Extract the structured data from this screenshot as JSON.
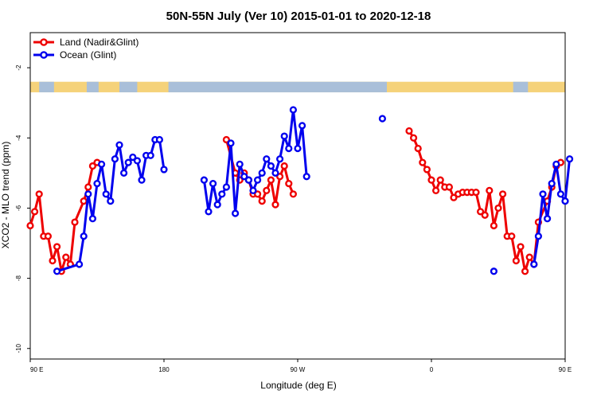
{
  "chart_data": {
    "type": "line",
    "title": "50N-55N July (Ver 10)   2015-01-01 to 2020-12-18",
    "xlabel": "Longitude (deg E)",
    "ylabel": "XCO2 - MLO trend (ppm)",
    "xlim": [
      90,
      450
    ],
    "ylim": [
      -10.3,
      -1.0
    ],
    "x_ticks": [
      {
        "value": 90,
        "label": "90 E"
      },
      {
        "value": 180,
        "label": "180"
      },
      {
        "value": 270,
        "label": "90 W"
      },
      {
        "value": 360,
        "label": "0"
      },
      {
        "value": 450,
        "label": "90 E"
      },
      {
        "value": 540,
        "label": "180"
      }
    ],
    "y_ticks": [
      {
        "value": -2,
        "label": "-2"
      },
      {
        "value": -4,
        "label": "-4"
      },
      {
        "value": -6,
        "label": "-6"
      },
      {
        "value": -8,
        "label": "-8"
      },
      {
        "value": -10,
        "label": "-10"
      }
    ],
    "grid": false,
    "legend_position": "top-left",
    "land_ocean_strip": {
      "y_range": [
        -2.7,
        -2.4
      ],
      "colors": {
        "ocean": "#a9bfd9",
        "land": "#f5d27a"
      }
    },
    "series": [
      {
        "name": "Land (Nadir&Glint)",
        "color": "#ee0000",
        "points": [
          [
            90,
            -6.5
          ],
          [
            93,
            -6.1
          ],
          [
            96,
            -5.6
          ],
          [
            99,
            -6.8
          ],
          [
            102,
            -6.8
          ],
          [
            105,
            -7.5
          ],
          [
            108,
            -7.1
          ],
          [
            111,
            -7.8
          ],
          [
            114,
            -7.4
          ],
          [
            117,
            -7.6
          ],
          [
            120,
            -6.4
          ],
          [
            126,
            -5.8
          ],
          [
            129,
            -5.4
          ],
          [
            132,
            -4.8
          ],
          [
            135,
            -4.7
          ],
          [
            222,
            -4.05
          ],
          [
            228,
            -5.0
          ],
          [
            231,
            -5.2
          ],
          [
            234,
            -5.0
          ],
          [
            237,
            -5.2
          ],
          [
            240,
            -5.6
          ],
          [
            243,
            -5.6
          ],
          [
            246,
            -5.8
          ],
          [
            249,
            -5.5
          ],
          [
            252,
            -5.2
          ],
          [
            255,
            -5.9
          ],
          [
            258,
            -5.1
          ],
          [
            261,
            -4.8
          ],
          [
            264,
            -5.3
          ],
          [
            267,
            -5.6
          ],
          [
            345,
            -3.8
          ],
          [
            348,
            -4.0
          ],
          [
            351,
            -4.3
          ],
          [
            354,
            -4.7
          ],
          [
            357,
            -4.9
          ],
          [
            360,
            -5.2
          ],
          [
            363,
            -5.5
          ],
          [
            366,
            -5.2
          ],
          [
            369,
            -5.4
          ],
          [
            372,
            -5.4
          ],
          [
            375,
            -5.7
          ],
          [
            378,
            -5.6
          ],
          [
            381,
            -5.55
          ],
          [
            384,
            -5.55
          ],
          [
            387,
            -5.55
          ],
          [
            390,
            -5.55
          ],
          [
            393,
            -6.1
          ],
          [
            396,
            -6.2
          ],
          [
            399,
            -5.5
          ],
          [
            402,
            -6.5
          ],
          [
            405,
            -6.0
          ],
          [
            408,
            -5.6
          ],
          [
            411,
            -6.8
          ],
          [
            414,
            -6.8
          ],
          [
            417,
            -7.5
          ],
          [
            420,
            -7.1
          ],
          [
            423,
            -7.8
          ],
          [
            426,
            -7.4
          ],
          [
            429,
            -7.6
          ],
          [
            432,
            -6.4
          ],
          [
            438,
            -5.8
          ],
          [
            441,
            -5.4
          ],
          [
            444,
            -4.8
          ],
          [
            447,
            -4.7
          ]
        ]
      },
      {
        "name": "Ocean (Glint)",
        "color": "#0000ee",
        "points": [
          [
            108,
            -7.8
          ],
          [
            123,
            -7.6
          ],
          [
            126,
            -6.8
          ],
          [
            129,
            -5.6
          ],
          [
            132,
            -6.3
          ],
          [
            135,
            -5.3
          ],
          [
            138,
            -4.75
          ],
          [
            141,
            -5.6
          ],
          [
            144,
            -5.8
          ],
          [
            147,
            -4.6
          ],
          [
            150,
            -4.2
          ],
          [
            153,
            -5.0
          ],
          [
            156,
            -4.7
          ],
          [
            159,
            -4.55
          ],
          [
            162,
            -4.65
          ],
          [
            165,
            -5.2
          ],
          [
            168,
            -4.5
          ],
          [
            171,
            -4.5
          ],
          [
            174,
            -4.05
          ],
          [
            177,
            -4.05
          ],
          [
            180,
            -4.9
          ],
          [
            207,
            -5.2
          ],
          [
            210,
            -6.1
          ],
          [
            213,
            -5.3
          ],
          [
            216,
            -5.9
          ],
          [
            219,
            -5.6
          ],
          [
            222,
            -5.4
          ],
          [
            225,
            -4.15
          ],
          [
            228,
            -6.15
          ],
          [
            231,
            -4.75
          ],
          [
            234,
            -5.1
          ],
          [
            237,
            -5.2
          ],
          [
            240,
            -5.5
          ],
          [
            243,
            -5.2
          ],
          [
            246,
            -5.0
          ],
          [
            249,
            -4.6
          ],
          [
            252,
            -4.8
          ],
          [
            255,
            -5.0
          ],
          [
            258,
            -4.6
          ],
          [
            261,
            -3.95
          ],
          [
            264,
            -4.3
          ],
          [
            267,
            -3.2
          ],
          [
            270,
            -4.3
          ],
          [
            273,
            -3.65
          ],
          [
            276,
            -5.1
          ],
          [
            327,
            -3.45
          ],
          [
            402,
            -7.8
          ],
          [
            429,
            -7.6
          ],
          [
            432,
            -6.8
          ],
          [
            435,
            -5.6
          ],
          [
            438,
            -6.3
          ],
          [
            441,
            -5.3
          ],
          [
            444,
            -4.75
          ],
          [
            447,
            -5.6
          ],
          [
            450,
            -5.8
          ],
          [
            453,
            -4.6
          ]
        ]
      }
    ]
  }
}
